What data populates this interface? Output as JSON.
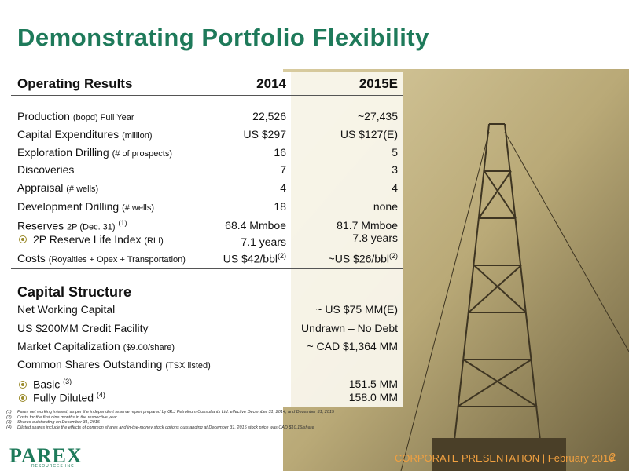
{
  "header": {
    "title": "Demonstrating Portfolio Flexibility"
  },
  "operating": {
    "columns": [
      "Operating Results",
      "2014",
      "2015E"
    ],
    "rows": [
      {
        "label": "Production",
        "note": "(bopd)  Full Year",
        "v2014": "22,526",
        "v2015": "~27,435"
      },
      {
        "label": "Capital Expenditures",
        "note": "(million)",
        "v2014": "US $297",
        "v2015": "US $127(E)"
      },
      {
        "label": "Exploration Drilling",
        "note": "(# of prospects)",
        "v2014": "16",
        "v2015": "5"
      },
      {
        "label": "Discoveries",
        "v2014": "7",
        "v2015": "3"
      },
      {
        "label": "Appraisal",
        "note": "(# wells)",
        "v2014": "4",
        "v2015": "4"
      },
      {
        "label": "Development Drilling",
        "note": "(# wells)",
        "v2014": "18",
        "v2015": "none"
      },
      {
        "label": "Reserves",
        "note": "2P (Dec. 31)",
        "sup": "(1)",
        "v2014": "68.4 Mmboe",
        "v2015": "81.7 Mmboe"
      },
      {
        "label": "2P Reserve Life Index",
        "note": "(RLI)",
        "bullet": true,
        "v2014": "7.1 years",
        "v2015": "7.8 years"
      },
      {
        "label": "Costs",
        "note": "(Royalties + Opex + Transportation)",
        "v2014": "US $42/bbl",
        "v2014sup": "(2)",
        "v2015": "~US $26/bbl",
        "v2015sup": "(2)"
      }
    ]
  },
  "capital": {
    "heading": "Capital Structure",
    "rows": [
      {
        "label": "Net Working Capital",
        "v2015": "~ US $75 MM(E)"
      },
      {
        "label": "US $200MM Credit Facility",
        "v2015": "Undrawn – No Debt"
      },
      {
        "label": "Market Capitalization",
        "note": "($9.00/share)",
        "v2015": "~ CAD $1,364 MM"
      },
      {
        "label": "Common Shares Outstanding",
        "note": "(TSX listed)"
      },
      {
        "label": "Basic",
        "sup": "(3)",
        "bullet": true,
        "v2015": "151.5 MM"
      },
      {
        "label": "Fully Diluted",
        "sup": "(4)",
        "bullet": true,
        "v2015": "158.0 MM"
      }
    ]
  },
  "footnotes": [
    {
      "marker": "(1)",
      "text": "Parex net working interest, as per the independent reserve report prepared by GLJ Petroleum Consultants Ltd. effective  December 31, 2014, and December 31, 2015"
    },
    {
      "marker": "(2)",
      "text": "Costs for the first nine months in the respective year"
    },
    {
      "marker": "(3)",
      "text": "Shares outstanding on December 31, 2015"
    },
    {
      "marker": "(4)",
      "text": "Diluted shares include the effects of common shares and in-the-money stock options outstanding at December 31, 2015 stock price was CAD $10.16/share"
    }
  ],
  "footer": {
    "logo": "PAREX",
    "logo_sub": "RESOURCES INC",
    "text": "CORPORATE PRESENTATION | February 2016",
    "page": "2"
  }
}
